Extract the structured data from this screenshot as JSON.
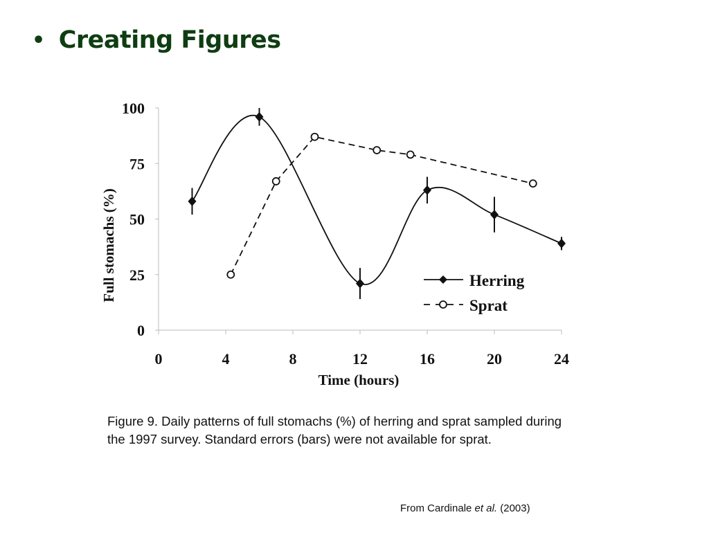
{
  "slide": {
    "bullet": "•",
    "title": "Creating Figures"
  },
  "caption": "Figure 9. Daily patterns of full stomachs (%) of herring and sprat sampled during the 1997 survey. Standard errors (bars) were not available for sprat.",
  "source": {
    "prefix": "From Cardinale ",
    "italic": "et al.",
    "suffix": " (2003)"
  },
  "chart_data": {
    "type": "line",
    "title": "",
    "xlabel": "Time (hours)",
    "ylabel": "Full stomachs (%)",
    "xlim": [
      0,
      24
    ],
    "ylim": [
      0,
      100
    ],
    "xticks": [
      0,
      4,
      8,
      12,
      16,
      20,
      24
    ],
    "yticks": [
      0,
      25,
      50,
      75,
      100
    ],
    "grid": false,
    "legend_position": "lower right inside",
    "series": [
      {
        "name": "Herring",
        "style": "solid line, filled diamond markers, smoothed",
        "color": "#111111",
        "x": [
          2,
          6,
          12,
          16,
          20,
          24
        ],
        "y": [
          58,
          96,
          21,
          63,
          52,
          39
        ],
        "error": [
          6,
          4,
          7,
          6,
          8,
          3
        ]
      },
      {
        "name": "Sprat",
        "style": "dashed line, open circle markers",
        "color": "#111111",
        "x": [
          4.3,
          7,
          9.3,
          13,
          15,
          22.3
        ],
        "y": [
          25,
          67,
          87,
          81,
          79,
          66
        ],
        "error": null
      }
    ]
  }
}
